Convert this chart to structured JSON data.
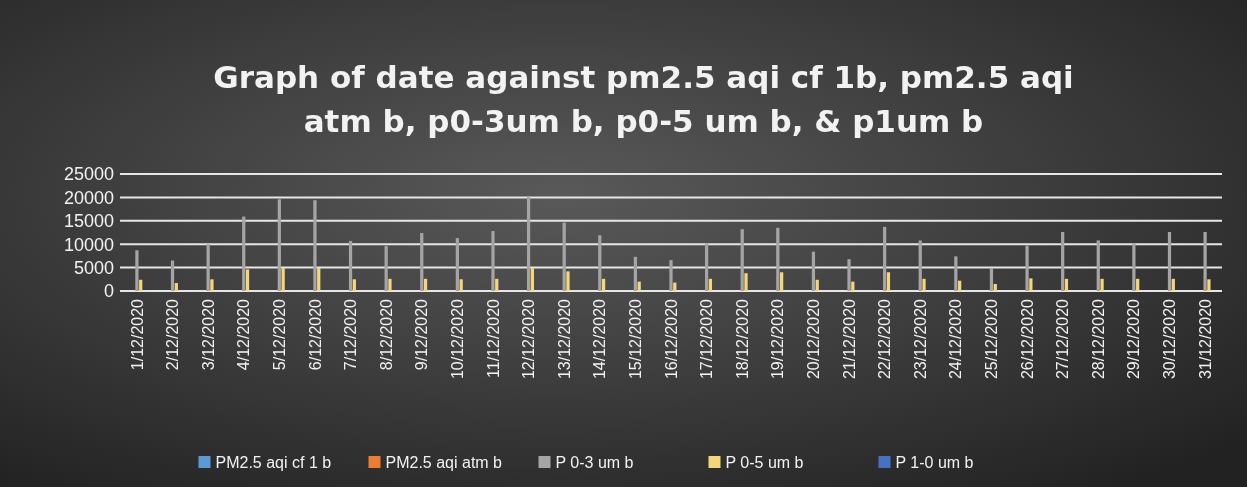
{
  "chart_data": {
    "type": "bar",
    "title": "Graph of date against pm2.5 aqi cf 1b, pm2.5 aqi atm b, p0-3um b, p0-5 um b, & p1um b",
    "categories": [
      "1/12/2020",
      "2/12/2020",
      "3/12/2020",
      "4/12/2020",
      "5/12/2020",
      "6/12/2020",
      "7/12/2020",
      "8/12/2020",
      "9/12/2020",
      "10/12/2020",
      "11/12/2020",
      "12/12/2020",
      "13/12/2020",
      "14/12/2020",
      "15/12/2020",
      "16/12/2020",
      "17/12/2020",
      "18/12/2020",
      "19/12/2020",
      "20/12/2020",
      "21/12/2020",
      "22/12/2020",
      "23/12/2020",
      "24/12/2020",
      "25/12/2020",
      "26/12/2020",
      "27/12/2020",
      "28/12/2020",
      "29/12/2020",
      "30/12/2020",
      "31/12/2020"
    ],
    "series": [
      {
        "name": "PM2.5 aqi cf 1 b",
        "color": "#5b9bd5",
        "values": [
          0,
          0,
          0,
          0,
          0,
          0,
          0,
          0,
          0,
          0,
          0,
          0,
          0,
          0,
          0,
          0,
          0,
          0,
          0,
          0,
          0,
          0,
          0,
          0,
          0,
          0,
          0,
          0,
          0,
          0,
          0
        ]
      },
      {
        "name": "PM2.5 aqi atm b",
        "color": "#ed7d31",
        "values": [
          0,
          0,
          0,
          0,
          0,
          0,
          0,
          0,
          0,
          0,
          0,
          0,
          0,
          0,
          0,
          0,
          0,
          0,
          0,
          0,
          0,
          0,
          0,
          0,
          0,
          0,
          0,
          0,
          0,
          0,
          0
        ]
      },
      {
        "name": "P 0-3 um b",
        "color": "#a5a5a5",
        "values": [
          8700,
          6500,
          10000,
          15900,
          19600,
          19400,
          10700,
          9600,
          12400,
          11300,
          12800,
          20300,
          14600,
          11900,
          7300,
          6600,
          10200,
          13200,
          13500,
          8400,
          6800,
          13700,
          10800,
          7400,
          4900,
          9700,
          12600,
          10800,
          10200,
          12600,
          12600
        ]
      },
      {
        "name": "P 0-5 um b",
        "color": "#f5d77a",
        "values": [
          2400,
          1700,
          2500,
          4600,
          4900,
          4900,
          2500,
          2600,
          2600,
          2500,
          2600,
          4900,
          4200,
          2600,
          2000,
          1800,
          2600,
          3800,
          4000,
          2400,
          2000,
          4000,
          2600,
          2200,
          1500,
          2700,
          2600,
          2600,
          2600,
          2600,
          2500
        ]
      },
      {
        "name": "P 1-0 um b",
        "color": "#4472c4",
        "values": [
          0,
          0,
          0,
          0,
          0,
          0,
          0,
          0,
          0,
          0,
          0,
          0,
          0,
          0,
          0,
          0,
          0,
          0,
          0,
          0,
          0,
          0,
          0,
          0,
          0,
          0,
          0,
          0,
          0,
          0,
          0
        ]
      }
    ],
    "ylim": [
      0,
      25000
    ],
    "yticks": [
      0,
      5000,
      10000,
      15000,
      20000,
      25000
    ],
    "grid": "y",
    "legend": "bottom"
  }
}
